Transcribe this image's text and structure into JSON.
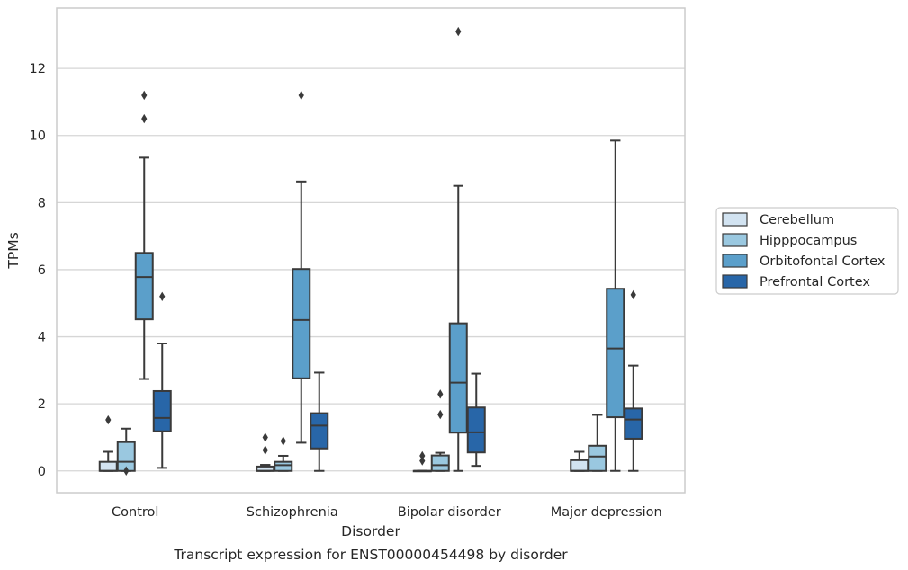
{
  "caption": "Transcript expression for ENST00000454498 by disorder",
  "chart_data": {
    "type": "box",
    "title": "",
    "xlabel": "Disorder",
    "ylabel": "TPMs",
    "ylim": [
      -0.65,
      13.8
    ],
    "yticks": [
      0,
      2,
      4,
      6,
      8,
      10,
      12
    ],
    "ytick_labels": [
      "0",
      "2",
      "4",
      "6",
      "8",
      "10",
      "12"
    ],
    "categories": [
      "Control",
      "Schizophrenia",
      "Bipolar disorder",
      "Major depression"
    ],
    "grid": "horizontal",
    "legend_position": "right",
    "series": [
      {
        "name": "Cerebellum",
        "color": "#d2e3f1",
        "boxes": [
          {
            "whisker_low": 0,
            "q1": 0,
            "median": 0,
            "q3": 0.27,
            "whisker_high": 0.57,
            "fliers": [
              1.52
            ]
          },
          {
            "whisker_low": 0,
            "q1": 0,
            "median": 0,
            "q3": 0.13,
            "whisker_high": 0.18,
            "fliers": [
              0.62,
              1.0
            ]
          },
          {
            "whisker_low": 0,
            "q1": 0,
            "median": 0,
            "q3": 0,
            "whisker_high": 0,
            "fliers": [
              0.3,
              0.45
            ]
          },
          {
            "whisker_low": 0,
            "q1": 0,
            "median": 0,
            "q3": 0.32,
            "whisker_high": 0.57,
            "fliers": []
          }
        ]
      },
      {
        "name": "Hipppocampus",
        "color": "#9ac8e0",
        "boxes": [
          {
            "whisker_low": 0,
            "q1": 0,
            "median": 0.27,
            "q3": 0.86,
            "whisker_high": 1.26,
            "fliers": [
              0.0
            ]
          },
          {
            "whisker_low": 0,
            "q1": 0,
            "median": 0.17,
            "q3": 0.27,
            "whisker_high": 0.45,
            "fliers": [
              0.89
            ]
          },
          {
            "whisker_low": 0,
            "q1": 0,
            "median": 0.17,
            "q3": 0.46,
            "whisker_high": 0.54,
            "fliers": [
              1.68,
              2.29
            ]
          },
          {
            "whisker_low": 0,
            "q1": 0,
            "median": 0.43,
            "q3": 0.75,
            "whisker_high": 1.67,
            "fliers": []
          }
        ]
      },
      {
        "name": "Orbitofontal Cortex",
        "color": "#5b9fca",
        "boxes": [
          {
            "whisker_low": 2.74,
            "q1": 4.52,
            "median": 5.78,
            "q3": 6.5,
            "whisker_high": 9.34,
            "fliers": [
              10.5,
              11.2
            ]
          },
          {
            "whisker_low": 0.84,
            "q1": 2.76,
            "median": 4.5,
            "q3": 6.02,
            "whisker_high": 8.63,
            "fliers": [
              11.2
            ]
          },
          {
            "whisker_low": 0,
            "q1": 1.14,
            "median": 2.63,
            "q3": 4.4,
            "whisker_high": 8.5,
            "fliers": [
              13.1
            ]
          },
          {
            "whisker_low": 0,
            "q1": 1.6,
            "median": 3.65,
            "q3": 5.43,
            "whisker_high": 9.85,
            "fliers": []
          }
        ]
      },
      {
        "name": "Prefrontal Cortex",
        "color": "#2866a8",
        "boxes": [
          {
            "whisker_low": 0.09,
            "q1": 1.18,
            "median": 1.58,
            "q3": 2.38,
            "whisker_high": 3.8,
            "fliers": [
              5.2
            ]
          },
          {
            "whisker_low": 0,
            "q1": 0.67,
            "median": 1.35,
            "q3": 1.72,
            "whisker_high": 2.93,
            "fliers": []
          },
          {
            "whisker_low": 0.15,
            "q1": 0.55,
            "median": 1.15,
            "q3": 1.89,
            "whisker_high": 2.9,
            "fliers": []
          },
          {
            "whisker_low": 0,
            "q1": 0.96,
            "median": 1.53,
            "q3": 1.86,
            "whisker_high": 3.14,
            "fliers": [
              5.25
            ]
          }
        ]
      }
    ]
  }
}
